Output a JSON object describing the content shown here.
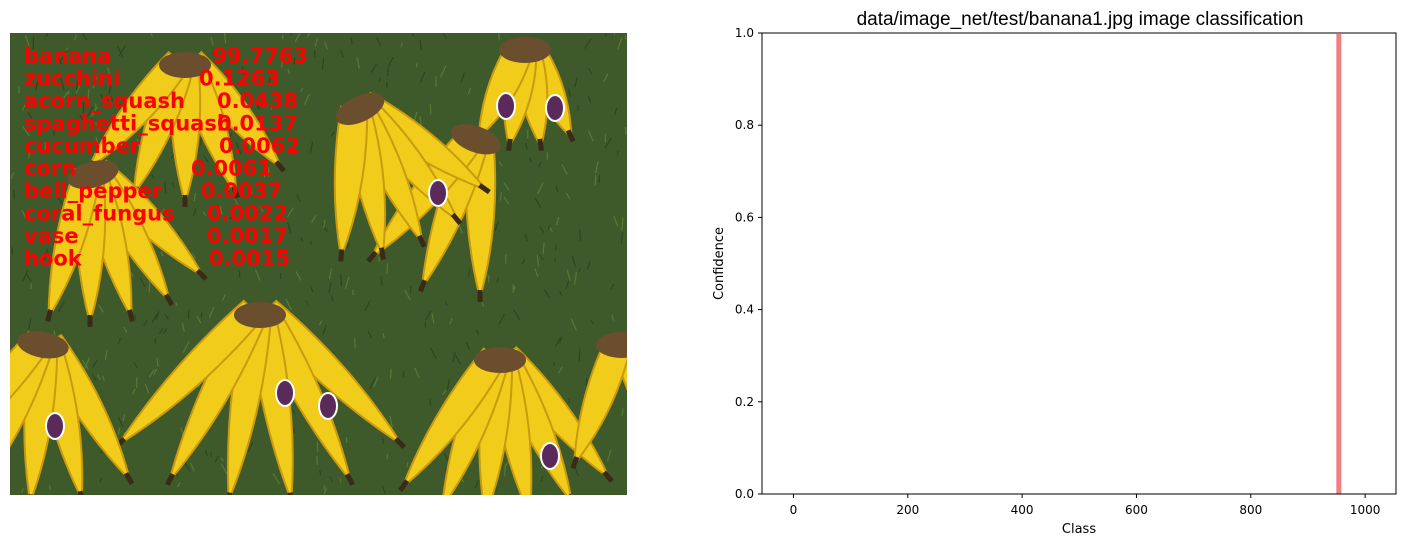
{
  "photo": {
    "predictions": [
      {
        "label": "banana",
        "score": "99.7763"
      },
      {
        "label": "zucchini",
        "score": "0.1263"
      },
      {
        "label": "acorn_squash",
        "score": "0.0438"
      },
      {
        "label": "spaghetti_squash",
        "score": "0.0137"
      },
      {
        "label": "cucumber",
        "score": "0.0062"
      },
      {
        "label": "corn",
        "score": "0.0061"
      },
      {
        "label": "bell_pepper",
        "score": "0.0037"
      },
      {
        "label": "coral_fungus",
        "score": "0.0022"
      },
      {
        "label": "vase",
        "score": "0.0017"
      },
      {
        "label": "hook",
        "score": "0.0015"
      }
    ],
    "text_color": "#ff0000",
    "colors": {
      "grass": "#3f5a2a",
      "banana": "#f2cc1a",
      "banana_shadow": "#c99a0e",
      "stem": "#6b4e2e"
    }
  },
  "chart_data": {
    "type": "bar",
    "title": "data/image_net/test/banana1.jpg image classification",
    "xlabel": "Class",
    "ylabel": "Confidence",
    "xlim": [
      -55,
      1054
    ],
    "ylim": [
      0.0,
      1.0
    ],
    "xticks": [
      0,
      200,
      400,
      600,
      800,
      1000
    ],
    "yticks": [
      "0.0",
      "0.2",
      "0.4",
      "0.6",
      "0.8",
      "1.0"
    ],
    "num_classes": 1000,
    "peak_class": 954,
    "peak_value": 0.997763,
    "baseline_value": 2e-05,
    "bar_color": "#f08080"
  }
}
